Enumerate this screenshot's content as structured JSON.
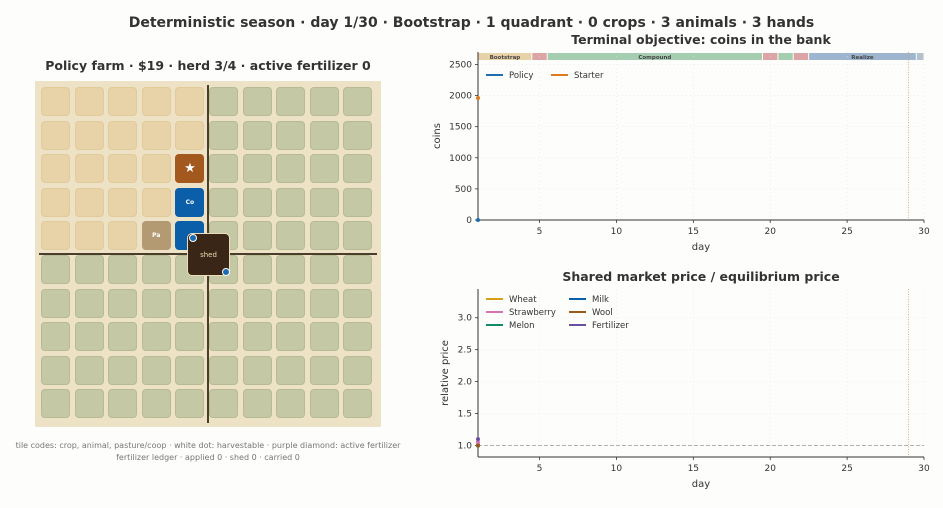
{
  "suptitle": "Deterministic season · day 1/30 · Bootstrap · 1 quadrant · 0 crops · 3 animals · 3 hands",
  "farm": {
    "title": "Policy farm · $19 · herd 3/4 · active fertilizer 0",
    "grid_rows": 10,
    "grid_cols": 10,
    "crop_tiles_description": "top-left quadrant rows 0-4, cols 0-4",
    "animals": [
      {
        "row": 2,
        "col": 4,
        "code": "",
        "icon": "star-icon",
        "color": "#a3581e"
      },
      {
        "row": 3,
        "col": 4,
        "code": "Co",
        "icon": "",
        "color": "#0b5ea8"
      },
      {
        "row": 4,
        "col": 3,
        "code": "Pa",
        "icon": "",
        "color": "#b39a73"
      },
      {
        "row": 4,
        "col": 4,
        "code": "",
        "icon": "",
        "color": "#0b5ea8"
      }
    ],
    "shed_label": "shed",
    "caption_line1": "tile codes: crop, animal, pasture/coop · white dot: harvestable · purple diamond: active fertilizer",
    "caption_line2": "fertilizer ledger · applied 0 · shed 0 · carried 0"
  },
  "chart_data": [
    {
      "type": "line",
      "title": "Terminal objective: coins in the bank",
      "xlabel": "day",
      "ylabel": "coins",
      "xlim": [
        1,
        30
      ],
      "ylim": [
        0,
        2700
      ],
      "xticks": [
        5,
        10,
        15,
        20,
        25,
        30
      ],
      "yticks": [
        0,
        500,
        1000,
        1500,
        2000,
        2500
      ],
      "grid": true,
      "legend_position": "top-left",
      "phases": [
        {
          "label": "Bootstrap",
          "start": 1,
          "end": 4.5,
          "color": "#e8d3a8"
        },
        {
          "label": "",
          "start": 4.5,
          "end": 5.5,
          "color": "#dca4a4"
        },
        {
          "label": "Compound",
          "start": 5.5,
          "end": 19.5,
          "color": "#a4cdb1"
        },
        {
          "label": "",
          "start": 19.5,
          "end": 20.5,
          "color": "#dca4a4"
        },
        {
          "label": "",
          "start": 20.5,
          "end": 21.5,
          "color": "#a4cdb1"
        },
        {
          "label": "",
          "start": 21.5,
          "end": 22.5,
          "color": "#dca4a4"
        },
        {
          "label": "Realize",
          "start": 22.5,
          "end": 29.5,
          "color": "#9db5cf"
        },
        {
          "label": "",
          "start": 29.5,
          "end": 30,
          "color": "#b4c0cc"
        }
      ],
      "marker_day": 29,
      "series": [
        {
          "name": "Policy",
          "color": "#1f6fb0",
          "x": [
            1
          ],
          "y": [
            0
          ]
        },
        {
          "name": "Starter",
          "color": "#e07a1f",
          "x": [
            1
          ],
          "y": [
            1960
          ]
        }
      ]
    },
    {
      "type": "line",
      "title": "Shared market price / equilibrium price",
      "xlabel": "day",
      "ylabel": "relative price",
      "xlim": [
        1,
        30
      ],
      "ylim": [
        0.82,
        3.45
      ],
      "xticks": [
        5,
        10,
        15,
        20,
        25,
        30
      ],
      "yticks": [
        1.0,
        1.5,
        2.0,
        2.5,
        3.0
      ],
      "ytick_labels": [
        "1.0",
        "1.5",
        "2.0",
        "2.5",
        "3.0"
      ],
      "grid": true,
      "legend_position": "top-left",
      "reference_y": 1.0,
      "marker_day": 29,
      "series": [
        {
          "name": "Wheat",
          "color": "#d4a017",
          "x": [
            1
          ],
          "y": [
            1.0
          ]
        },
        {
          "name": "Strawberry",
          "color": "#d772b5",
          "x": [
            1
          ],
          "y": [
            1.05
          ]
        },
        {
          "name": "Melon",
          "color": "#138a6a",
          "x": [
            1
          ],
          "y": [
            1.0
          ]
        },
        {
          "name": "Milk",
          "color": "#0b5ea8",
          "x": [
            1
          ],
          "y": [
            1.0
          ]
        },
        {
          "name": "Wool",
          "color": "#9a5a1a",
          "x": [
            1
          ],
          "y": [
            1.0
          ]
        },
        {
          "name": "Fertilizer",
          "color": "#6a4fa0",
          "x": [
            1
          ],
          "y": [
            1.1
          ]
        }
      ]
    }
  ]
}
